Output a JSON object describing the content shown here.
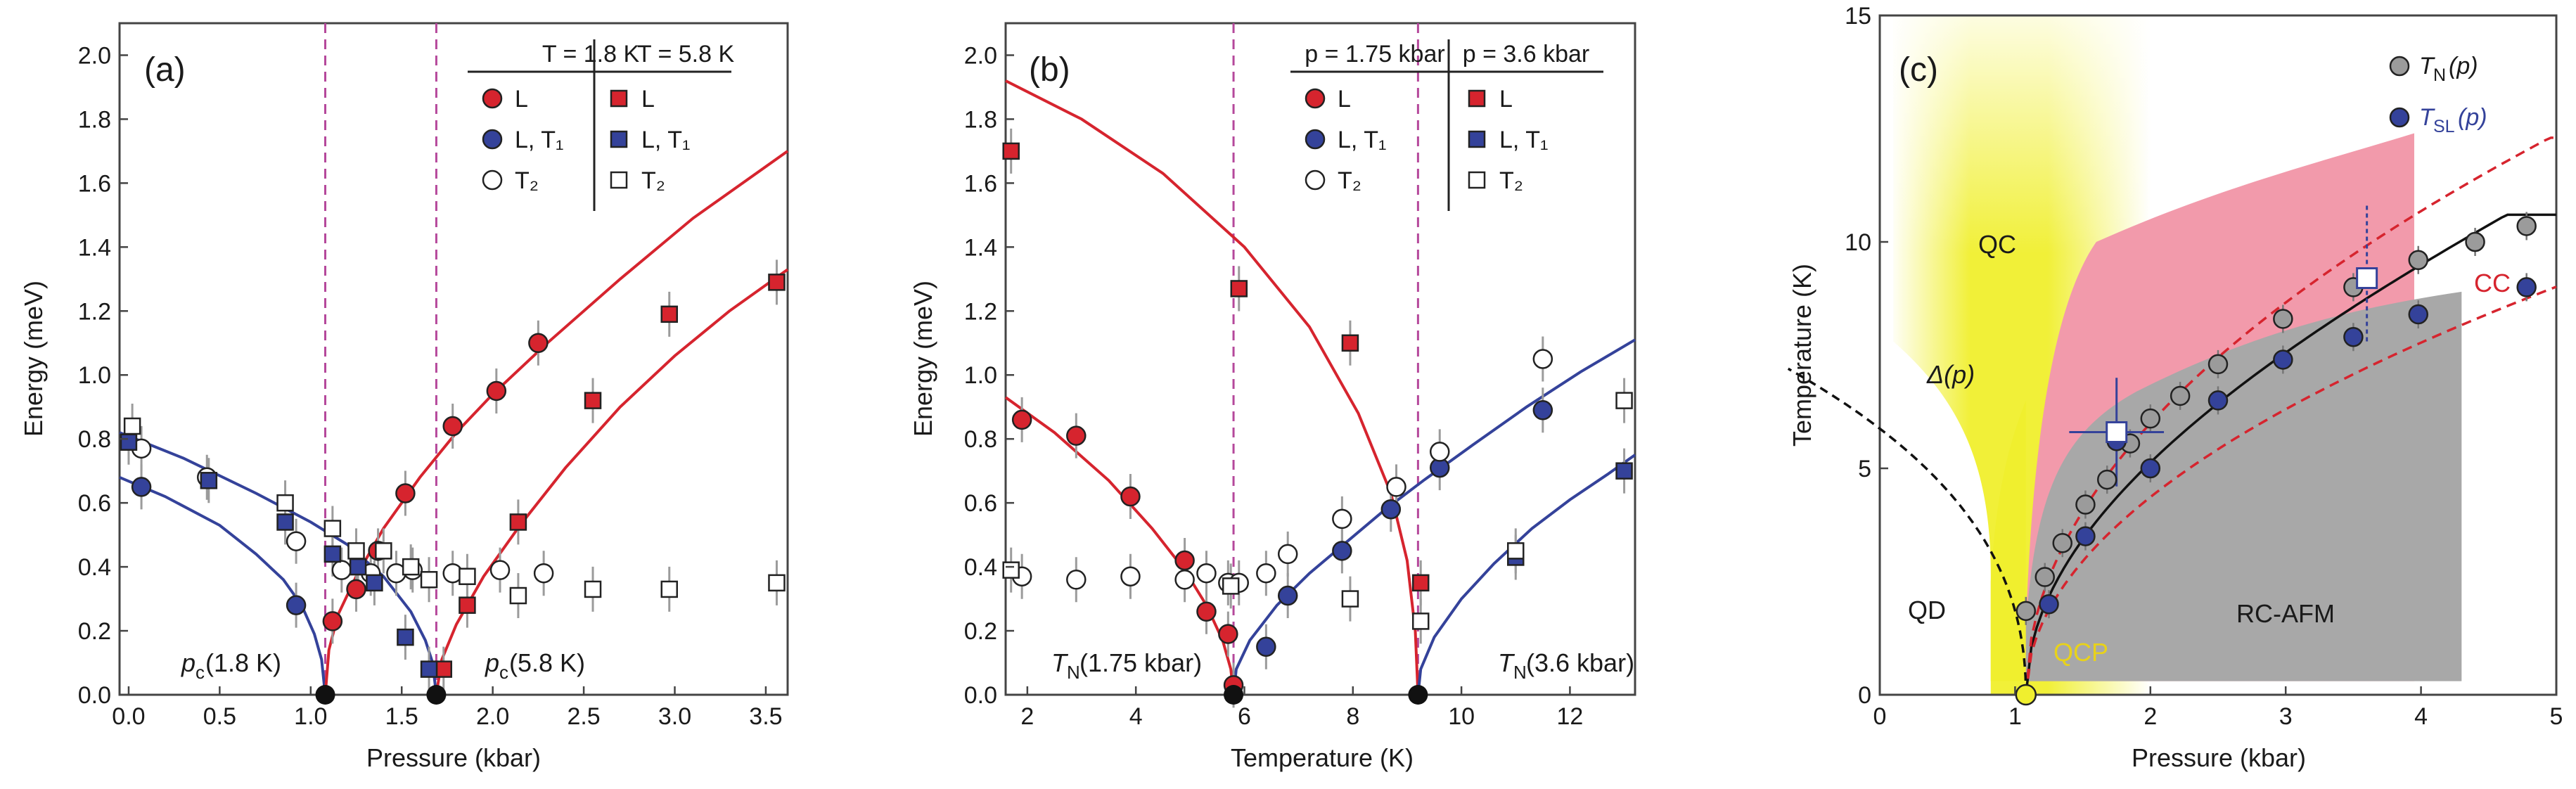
{
  "colors": {
    "red": "#d6242e",
    "blue": "#34429a",
    "gray": "#9b9b9b",
    "magenta": "#b5489b",
    "yellow": "#f0ef2e",
    "pink": "#f29aab",
    "region_gray": "#a8a8a8",
    "line_black": "#111111"
  },
  "chart_data": [
    {
      "panel_label": "(a)",
      "type": "scatter",
      "xlabel": "Pressure (kbar)",
      "ylabel": "Energy (meV)",
      "xlim": [
        -0.05,
        3.62
      ],
      "ylim": [
        0,
        2.1
      ],
      "xticks": [
        "0.0",
        "0.5",
        "1.0",
        "1.5",
        "2.0",
        "2.5",
        "3.0",
        "3.5"
      ],
      "yticks": [
        "0.0",
        "0.2",
        "0.4",
        "0.6",
        "0.8",
        "1.0",
        "1.2",
        "1.4",
        "1.6",
        "1.8",
        "2.0"
      ],
      "legend_headers": [
        "T = 1.8 K",
        "T = 5.8 K"
      ],
      "legend_labels": [
        "L",
        "L, T₁",
        "T₂"
      ],
      "annotations": [
        "p",
        "c",
        " (1.8 K)",
        " (5.8 K)"
      ],
      "vlines": [
        1.08,
        1.69
      ],
      "critical_points": [
        {
          "x": 1.08,
          "y": 0
        },
        {
          "x": 1.69,
          "y": 0
        }
      ],
      "series": [
        {
          "marker": "circle",
          "color": "red",
          "x": [
            1.12,
            1.25,
            1.37,
            1.52,
            1.78,
            2.02,
            2.25
          ],
          "y": [
            0.23,
            0.33,
            0.45,
            0.63,
            0.84,
            0.95,
            1.1
          ]
        },
        {
          "marker": "circle",
          "color": "blue",
          "x": [
            0.07,
            0.92
          ],
          "y": [
            0.65,
            0.28
          ]
        },
        {
          "marker": "circle",
          "color": "white",
          "x": [
            0.07,
            0.43,
            0.92,
            1.17,
            1.33,
            1.47,
            1.56,
            1.78,
            2.04,
            2.28
          ],
          "y": [
            0.77,
            0.68,
            0.48,
            0.39,
            0.38,
            0.38,
            0.39,
            0.38,
            0.39,
            0.38
          ]
        },
        {
          "marker": "square",
          "color": "red",
          "x": [
            1.73,
            1.86,
            2.14,
            2.55,
            2.97,
            3.56
          ],
          "y": [
            0.08,
            0.28,
            0.54,
            0.92,
            1.19,
            1.29
          ]
        },
        {
          "marker": "square",
          "color": "blue",
          "x": [
            0.0,
            0.44,
            0.86,
            1.12,
            1.26,
            1.35,
            1.52,
            1.65
          ],
          "y": [
            0.79,
            0.67,
            0.54,
            0.44,
            0.4,
            0.35,
            0.18,
            0.08
          ]
        },
        {
          "marker": "square",
          "color": "white",
          "x": [
            0.02,
            0.86,
            1.12,
            1.25,
            1.4,
            1.55,
            1.65,
            1.86,
            2.14,
            2.55,
            2.97,
            3.56
          ],
          "y": [
            0.84,
            0.6,
            0.52,
            0.45,
            0.45,
            0.4,
            0.36,
            0.37,
            0.31,
            0.33,
            0.33,
            0.35
          ]
        }
      ],
      "curves": [
        {
          "color": "blue",
          "x": [
            -0.05,
            0.2,
            0.5,
            0.7,
            0.85,
            0.95,
            1.02,
            1.06,
            1.08
          ],
          "y": [
            0.68,
            0.62,
            0.53,
            0.44,
            0.36,
            0.28,
            0.19,
            0.11,
            0.0
          ]
        },
        {
          "color": "blue",
          "x": [
            -0.05,
            0.3,
            0.7,
            1.0,
            1.2,
            1.4,
            1.55,
            1.63,
            1.67,
            1.69
          ],
          "y": [
            0.82,
            0.74,
            0.63,
            0.54,
            0.47,
            0.37,
            0.26,
            0.17,
            0.1,
            0.0
          ]
        },
        {
          "color": "red",
          "x": [
            1.08,
            1.1,
            1.15,
            1.25,
            1.4,
            1.6,
            1.8,
            2.0,
            2.3,
            2.7,
            3.1,
            3.62
          ],
          "y": [
            0.0,
            0.14,
            0.25,
            0.37,
            0.52,
            0.68,
            0.82,
            0.94,
            1.1,
            1.3,
            1.49,
            1.7
          ]
        },
        {
          "color": "red",
          "x": [
            1.69,
            1.72,
            1.8,
            1.95,
            2.15,
            2.4,
            2.7,
            3.0,
            3.3,
            3.62
          ],
          "y": [
            0.0,
            0.11,
            0.22,
            0.37,
            0.53,
            0.71,
            0.9,
            1.06,
            1.2,
            1.33
          ]
        }
      ]
    },
    {
      "panel_label": "(b)",
      "type": "scatter",
      "xlabel": "Temperature (K)",
      "ylabel": "Energy (meV)",
      "xlim": [
        1.6,
        13.2
      ],
      "ylim": [
        0,
        2.1
      ],
      "xticks": [
        "2",
        "4",
        "6",
        "8",
        "10",
        "12"
      ],
      "yticks": [
        "0.0",
        "0.2",
        "0.4",
        "0.6",
        "0.8",
        "1.0",
        "1.2",
        "1.4",
        "1.6",
        "1.8",
        "2.0"
      ],
      "legend_headers": [
        "p = 1.75 kbar",
        "p = 3.6 kbar"
      ],
      "legend_labels": [
        "L",
        "L, T₁",
        "T₂"
      ],
      "annotations": [
        "T",
        "N",
        " (1.75 kbar)",
        " (3.6 kbar)"
      ],
      "vlines": [
        5.8,
        9.2
      ],
      "critical_points": [
        {
          "x": 5.8,
          "y": 0
        },
        {
          "x": 9.2,
          "y": 0
        }
      ],
      "series": [
        {
          "marker": "circle",
          "color": "red",
          "x": [
            1.9,
            2.9,
            3.9,
            4.9,
            5.3,
            5.7,
            5.8
          ],
          "y": [
            0.86,
            0.81,
            0.62,
            0.42,
            0.26,
            0.19,
            0.03
          ]
        },
        {
          "marker": "circle",
          "color": "blue",
          "x": [
            6.4,
            6.8,
            7.8,
            8.7,
            9.6,
            11.5
          ],
          "y": [
            0.15,
            0.31,
            0.45,
            0.58,
            0.71,
            0.89
          ]
        },
        {
          "marker": "circle",
          "color": "white",
          "x": [
            1.9,
            2.9,
            3.9,
            4.9,
            5.3,
            5.7,
            5.9,
            6.4,
            6.8,
            7.8,
            8.8,
            9.6,
            11.5
          ],
          "y": [
            0.37,
            0.36,
            0.37,
            0.36,
            0.38,
            0.35,
            0.35,
            0.38,
            0.44,
            0.55,
            0.65,
            0.76,
            1.05
          ]
        },
        {
          "marker": "square",
          "color": "red",
          "x": [
            1.7,
            5.9,
            7.95,
            9.25
          ],
          "y": [
            1.7,
            1.27,
            1.1,
            0.35
          ]
        },
        {
          "marker": "square",
          "color": "blue",
          "x": [
            11.0,
            13.0
          ],
          "y": [
            0.43,
            0.7
          ]
        },
        {
          "marker": "square",
          "color": "white",
          "x": [
            1.7,
            5.75,
            7.95,
            9.25,
            11.0,
            13.0
          ],
          "y": [
            0.39,
            0.34,
            0.3,
            0.23,
            0.45,
            0.92
          ]
        }
      ],
      "curves": [
        {
          "color": "red",
          "x": [
            1.6,
            2.5,
            3.5,
            4.3,
            4.9,
            5.3,
            5.6,
            5.75,
            5.8
          ],
          "y": [
            0.93,
            0.82,
            0.67,
            0.52,
            0.39,
            0.28,
            0.17,
            0.08,
            0.0
          ]
        },
        {
          "color": "red",
          "x": [
            1.6,
            3.0,
            4.5,
            6.0,
            7.2,
            8.1,
            8.7,
            9.0,
            9.15,
            9.2
          ],
          "y": [
            1.92,
            1.8,
            1.63,
            1.4,
            1.15,
            0.88,
            0.63,
            0.42,
            0.2,
            0.0
          ]
        },
        {
          "color": "blue",
          "x": [
            5.8,
            5.85,
            6.1,
            6.6,
            7.2,
            7.9,
            8.6,
            9.3,
            10.2,
            11.2,
            12.2,
            13.2
          ],
          "y": [
            0.0,
            0.08,
            0.17,
            0.28,
            0.38,
            0.48,
            0.58,
            0.67,
            0.78,
            0.9,
            1.01,
            1.11
          ]
        },
        {
          "color": "blue",
          "x": [
            9.2,
            9.25,
            9.5,
            10.0,
            10.6,
            11.3,
            12.0,
            12.7,
            13.2
          ],
          "y": [
            0.0,
            0.08,
            0.18,
            0.3,
            0.41,
            0.52,
            0.61,
            0.69,
            0.75
          ]
        }
      ]
    },
    {
      "panel_label": "(c)",
      "type": "scatter",
      "xlabel": "Pressure (kbar)",
      "ylabel": "Temperature (K)",
      "xlim": [
        0,
        5
      ],
      "ylim": [
        0,
        15
      ],
      "xticks": [
        "0",
        "1",
        "2",
        "3",
        "4",
        "5"
      ],
      "yticks": [
        "0",
        "5",
        "10",
        "15"
      ],
      "legend": [
        {
          "label": "T",
          "sub": "N",
          "suffix": "(p)",
          "marker": "circle",
          "color": "gray"
        },
        {
          "label": "T",
          "sub": "SL",
          "suffix": "(p)",
          "marker": "circle",
          "color": "blue"
        }
      ],
      "region_labels": [
        "QC",
        "CC",
        "QD",
        "QCP",
        "RC-AFM",
        "Δ(p)"
      ],
      "qcp": {
        "x": 1.08,
        "y": 0
      },
      "series": [
        {
          "name": "T_N(p)",
          "marker": "circle",
          "color": "gray",
          "x": [
            1.08,
            1.22,
            1.35,
            1.52,
            1.68,
            1.85,
            2.0,
            2.22,
            2.5,
            2.98,
            3.5,
            3.98,
            4.4,
            4.78
          ],
          "y": [
            1.85,
            2.6,
            3.35,
            4.2,
            4.75,
            5.55,
            6.1,
            6.6,
            7.3,
            8.3,
            9.0,
            9.6,
            10.0,
            10.35
          ]
        },
        {
          "name": "T_SL(p)",
          "marker": "circle",
          "color": "blue",
          "x": [
            1.25,
            1.52,
            1.75,
            2.0,
            2.5,
            2.98,
            3.5,
            3.98,
            4.78
          ],
          "y": [
            2.0,
            3.5,
            5.6,
            5.0,
            6.5,
            7.4,
            7.9,
            8.4,
            9.0
          ]
        },
        {
          "name": "open-squares",
          "marker": "square",
          "color": "white",
          "x": [
            1.75,
            3.6
          ],
          "y": [
            5.8,
            9.2
          ]
        }
      ]
    }
  ]
}
